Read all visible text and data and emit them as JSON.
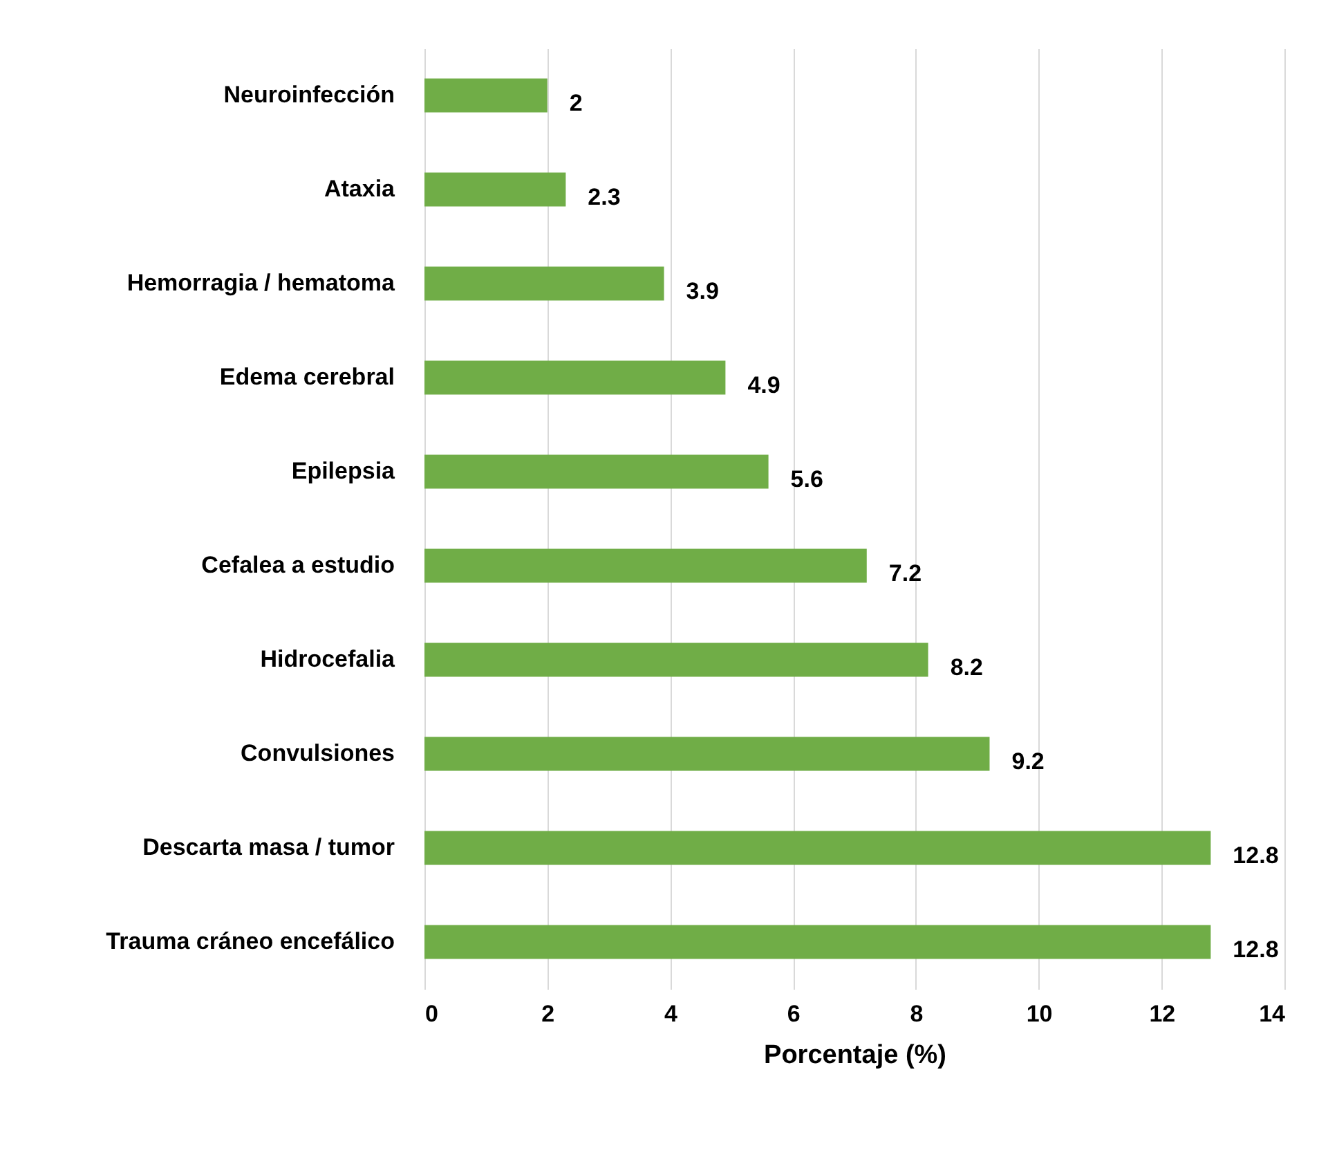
{
  "chart_data": {
    "type": "bar",
    "orientation": "horizontal",
    "xlabel": "Porcentaje (%)",
    "categories": [
      "Neuroinfección",
      "Ataxia",
      "Hemorragia / hematoma",
      "Edema cerebral",
      "Epilepsia",
      "Cefalea a estudio",
      "Hidrocefalia",
      "Convulsiones",
      "Descarta masa / tumor",
      "Trauma cráneo encefálico"
    ],
    "values": [
      2,
      2.3,
      3.9,
      4.9,
      5.6,
      7.2,
      8.2,
      9.2,
      12.8,
      12.8
    ],
    "color": "#70ad47",
    "xlim": [
      0,
      14
    ],
    "xticks": [
      0,
      2,
      4,
      6,
      8,
      10,
      12,
      14
    ],
    "grid": "x",
    "data_labels": true
  }
}
